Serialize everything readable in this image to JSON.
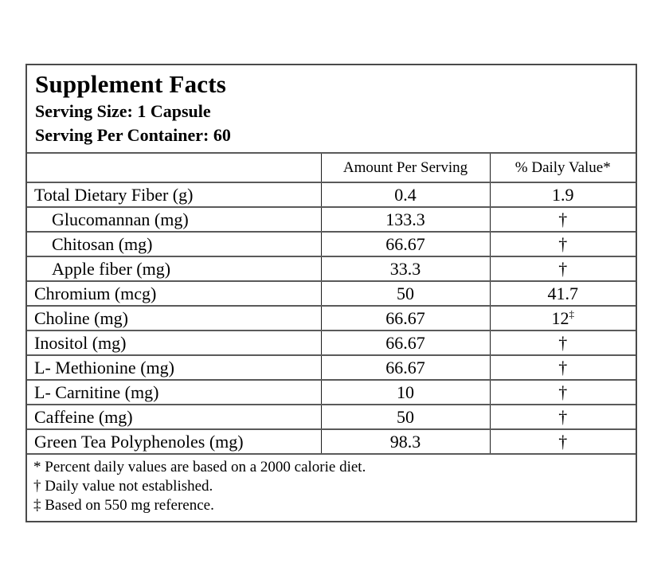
{
  "label": {
    "title": "Supplement Facts",
    "serving_size": "Serving Size: 1 Capsule",
    "serving_per_container": "Serving Per Container: 60",
    "columns": {
      "ingredient": "",
      "amount": "Amount Per Serving",
      "daily_value": "% Daily Value*"
    },
    "rows": [
      {
        "name": "Total Dietary Fiber (g)",
        "amount": "0.4",
        "daily_value": "1.9",
        "daily_value_sup": "",
        "indent": false
      },
      {
        "name": "Glucomannan (mg)",
        "amount": "133.3",
        "daily_value": "†",
        "daily_value_sup": "",
        "indent": true
      },
      {
        "name": "Chitosan (mg)",
        "amount": "66.67",
        "daily_value": "†",
        "daily_value_sup": "",
        "indent": true
      },
      {
        "name": "Apple fiber (mg)",
        "amount": "33.3",
        "daily_value": "†",
        "daily_value_sup": "",
        "indent": true
      },
      {
        "name": "Chromium (mcg)",
        "amount": "50",
        "daily_value": "41.7",
        "daily_value_sup": "",
        "indent": false
      },
      {
        "name": "Choline (mg)",
        "amount": "66.67",
        "daily_value": "12",
        "daily_value_sup": "‡",
        "indent": false
      },
      {
        "name": "Inositol (mg)",
        "amount": "66.67",
        "daily_value": "†",
        "daily_value_sup": "",
        "indent": false
      },
      {
        "name": "L- Methionine (mg)",
        "amount": "66.67",
        "daily_value": "†",
        "daily_value_sup": "",
        "indent": false
      },
      {
        "name": "L- Carnitine (mg)",
        "amount": "10",
        "daily_value": "†",
        "daily_value_sup": "",
        "indent": false
      },
      {
        "name": "Caffeine (mg)",
        "amount": "50",
        "daily_value": "†",
        "daily_value_sup": "",
        "indent": false
      },
      {
        "name": "Green Tea Polyphenoles (mg)",
        "amount": "98.3",
        "daily_value": "†",
        "daily_value_sup": "",
        "indent": false
      }
    ],
    "footnotes": [
      "* Percent daily values are based on a 2000 calorie diet.",
      "† Daily value not established.",
      "‡ Based on 550 mg reference."
    ],
    "colors": {
      "background": "#ffffff",
      "text": "#000000",
      "border_outer": "#4a4a4a",
      "border_row": "#5a5a5a",
      "border_column": "#1c1c1c"
    }
  }
}
